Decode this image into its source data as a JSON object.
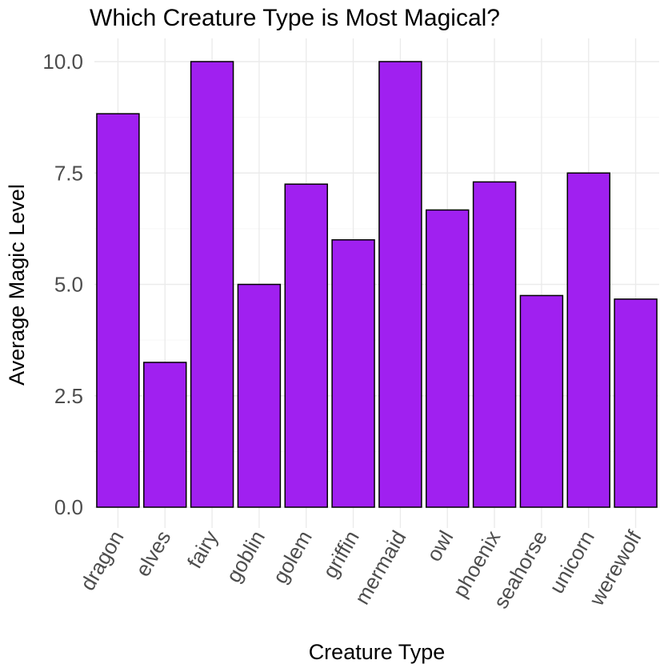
{
  "chart_data": {
    "type": "bar",
    "title": "Which Creature Type is Most Magical?",
    "xlabel": "Creature Type",
    "ylabel": "Average Magic Level",
    "categories": [
      "dragon",
      "elves",
      "fairy",
      "goblin",
      "golem",
      "griffin",
      "mermaid",
      "owl",
      "phoenix",
      "seahorse",
      "unicorn",
      "werewolf"
    ],
    "values": [
      8.83,
      3.25,
      10.0,
      5.0,
      7.25,
      6.0,
      10.0,
      6.67,
      7.3,
      4.75,
      7.5,
      4.67
    ],
    "ylim": [
      0,
      10
    ],
    "yticks": [
      "0.0",
      "2.5",
      "5.0",
      "7.5",
      "10.0"
    ],
    "bar_color": "#a020f0",
    "bar_outline": "#000000",
    "grid": true,
    "legend": "none"
  }
}
